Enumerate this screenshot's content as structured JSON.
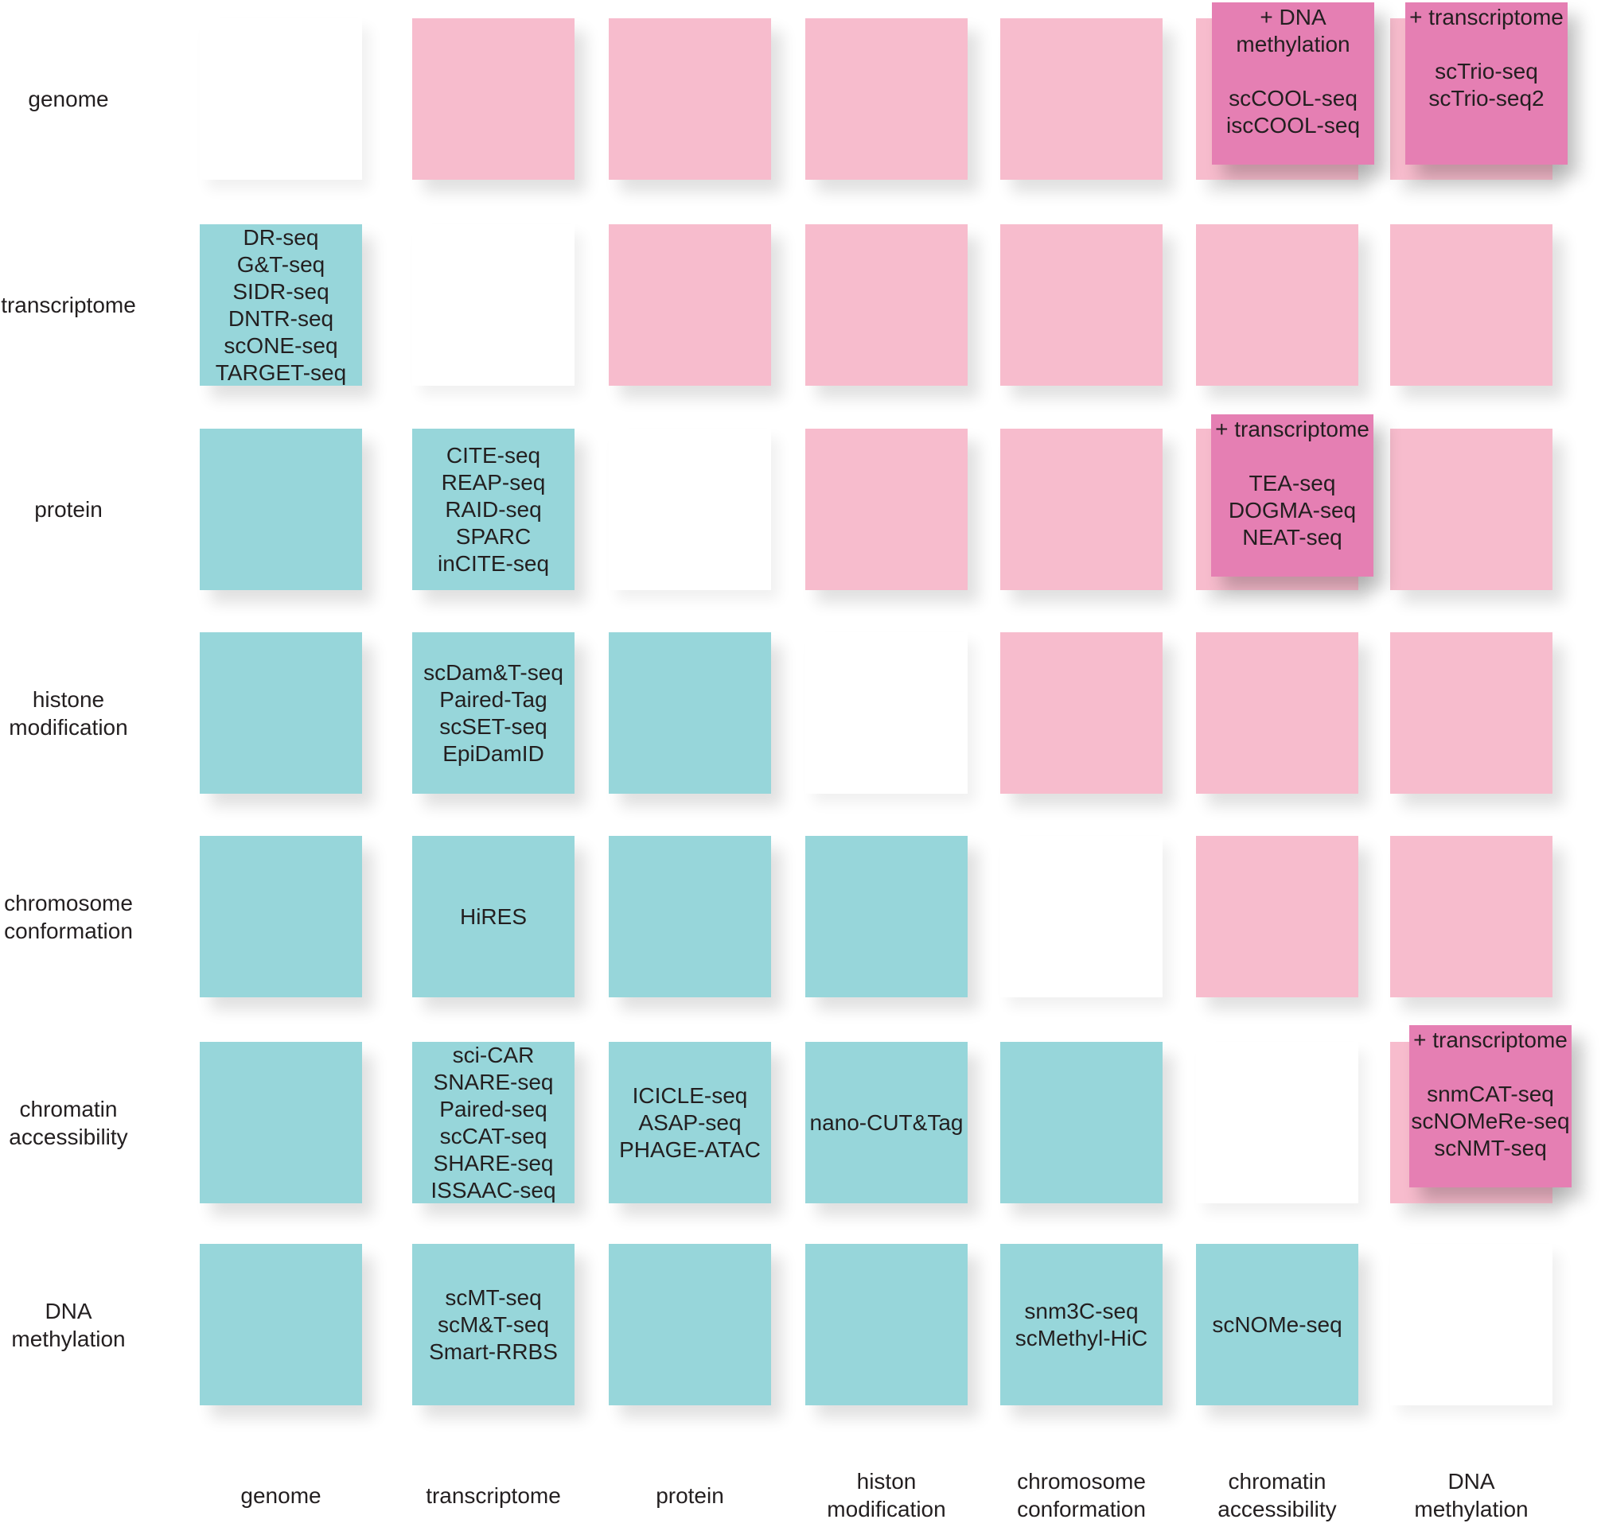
{
  "colors": {
    "upper": "#f7bccd",
    "lower": "#97d6da",
    "highlight": "#e57fb3",
    "text": "#231f20"
  },
  "row_labels": [
    [
      "genome"
    ],
    [
      "transcriptome"
    ],
    [
      "protein"
    ],
    [
      "histone",
      "modification"
    ],
    [
      "chromosome",
      "conformation"
    ],
    [
      "chromatin",
      "accessibility"
    ],
    [
      "DNA",
      "methylation"
    ]
  ],
  "column_labels": [
    [
      "genome"
    ],
    [
      "transcriptome"
    ],
    [
      "protein"
    ],
    [
      "histon",
      "modification"
    ],
    [
      "chromosome",
      "conformation"
    ],
    [
      "chromatin",
      "accessibility"
    ],
    [
      "DNA",
      "methylation"
    ]
  ],
  "cells": [
    [
      {
        "t": "empty",
        "m": []
      },
      {
        "t": "pink",
        "m": []
      },
      {
        "t": "pink",
        "m": []
      },
      {
        "t": "pink",
        "m": []
      },
      {
        "t": "pink",
        "m": []
      },
      {
        "t": "pink",
        "m": []
      },
      {
        "t": "pink",
        "m": []
      }
    ],
    [
      {
        "t": "teal",
        "m": [
          "DR-seq",
          "G&T-seq",
          "SIDR-seq",
          "DNTR-seq",
          "scONE-seq",
          "TARGET-seq"
        ]
      },
      {
        "t": "empty",
        "m": []
      },
      {
        "t": "pink",
        "m": []
      },
      {
        "t": "pink",
        "m": []
      },
      {
        "t": "pink",
        "m": []
      },
      {
        "t": "pink",
        "m": []
      },
      {
        "t": "pink",
        "m": []
      }
    ],
    [
      {
        "t": "teal",
        "m": []
      },
      {
        "t": "teal",
        "m": [
          "CITE-seq",
          "REAP-seq",
          "RAID-seq",
          "SPARC",
          "inCITE-seq"
        ]
      },
      {
        "t": "empty",
        "m": []
      },
      {
        "t": "pink",
        "m": []
      },
      {
        "t": "pink",
        "m": []
      },
      {
        "t": "pink",
        "m": []
      },
      {
        "t": "pink",
        "m": []
      }
    ],
    [
      {
        "t": "teal",
        "m": []
      },
      {
        "t": "teal",
        "m": [
          "scDam&T-seq",
          "Paired-Tag",
          "scSET-seq",
          "EpiDamID"
        ]
      },
      {
        "t": "teal",
        "m": []
      },
      {
        "t": "empty",
        "m": []
      },
      {
        "t": "pink",
        "m": []
      },
      {
        "t": "pink",
        "m": []
      },
      {
        "t": "pink",
        "m": []
      }
    ],
    [
      {
        "t": "teal",
        "m": []
      },
      {
        "t": "teal",
        "m": [
          "HiRES"
        ]
      },
      {
        "t": "teal",
        "m": []
      },
      {
        "t": "teal",
        "m": []
      },
      {
        "t": "empty",
        "m": []
      },
      {
        "t": "pink",
        "m": []
      },
      {
        "t": "pink",
        "m": []
      }
    ],
    [
      {
        "t": "teal",
        "m": []
      },
      {
        "t": "teal",
        "m": [
          "sci-CAR",
          "SNARE-seq",
          "Paired-seq",
          "scCAT-seq",
          "SHARE-seq",
          "ISSAAC-seq"
        ]
      },
      {
        "t": "teal",
        "m": [
          "ICICLE-seq",
          "ASAP-seq",
          "PHAGE-ATAC"
        ]
      },
      {
        "t": "teal",
        "m": [
          "nano-CUT&Tag"
        ]
      },
      {
        "t": "teal",
        "m": []
      },
      {
        "t": "empty",
        "m": []
      },
      {
        "t": "pink",
        "m": []
      }
    ],
    [
      {
        "t": "teal",
        "m": []
      },
      {
        "t": "teal",
        "m": [
          "scMT-seq",
          "scM&T-seq",
          "Smart-RRBS"
        ]
      },
      {
        "t": "teal",
        "m": []
      },
      {
        "t": "teal",
        "m": []
      },
      {
        "t": "teal",
        "m": [
          "snm3C-seq",
          "scMethyl-HiC"
        ]
      },
      {
        "t": "teal",
        "m": [
          "scNOMe-seq"
        ]
      },
      {
        "t": "empty",
        "m": []
      }
    ]
  ],
  "highlights": [
    {
      "row": 0,
      "col": 5,
      "head": [
        "+ DNA",
        "methylation"
      ],
      "methods": [
        "scCOOL-seq",
        "iscCOOL-seq"
      ]
    },
    {
      "row": 0,
      "col": 6,
      "head": [
        "+ transcriptome"
      ],
      "methods": [
        "scTrio-seq",
        "scTrio-seq2"
      ]
    },
    {
      "row": 2,
      "col": 5,
      "head": [
        "+ transcriptome"
      ],
      "methods": [
        "TEA-seq",
        "DOGMA-seq",
        "NEAT-seq"
      ]
    },
    {
      "row": 5,
      "col": 6,
      "head": [
        "+ transcriptome"
      ],
      "methods": [
        "snmCAT-seq",
        "scNOMeRe-seq",
        "scNMT-seq"
      ]
    }
  ]
}
